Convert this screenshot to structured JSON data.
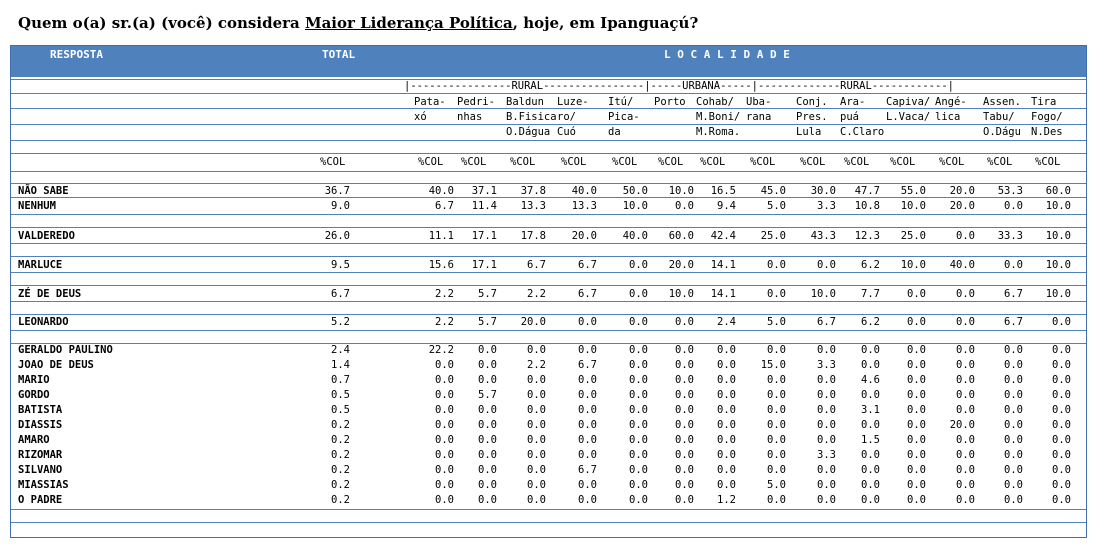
{
  "title": {
    "prefix": "Quem o(a) sr.(a) (você) considera ",
    "underlined": "Maior Liderança Política",
    "suffix": ", hoje, em Ipanguaçú?"
  },
  "header": {
    "resposta": "RESPOSTA",
    "total": "TOTAL",
    "localidade": "L O C A L I D A D E"
  },
  "groups_line": "|----------------RURAL----------------|-----URBANA-----|-------------RURAL------------|",
  "column_labels": [
    [
      "Pata-",
      "xó",
      ""
    ],
    [
      "Pedri-",
      "nhas",
      ""
    ],
    [
      "Baldun",
      "B.Fisica",
      "O.Dágua"
    ],
    [
      "Luze-",
      "ro/",
      "Cuó"
    ],
    [
      "Itú/",
      "Pica-",
      "da"
    ],
    [
      "Porto",
      "",
      ""
    ],
    [
      "Cohab/",
      "M.Boni/",
      "M.Roma."
    ],
    [
      "Uba-",
      "rana",
      ""
    ],
    [
      "Conj.",
      "Pres.",
      "Lula"
    ],
    [
      "Ara-",
      "puá",
      "C.Claro"
    ],
    [
      "Capiva/",
      "L.Vaca/",
      ""
    ],
    [
      "Angé-",
      "lica",
      ""
    ],
    [
      "Assen.",
      "Tabu/",
      "O.Dágu"
    ],
    [
      "Tira",
      "Fogo/",
      "N.Des"
    ]
  ],
  "col_unit": "%COL",
  "rows": [
    {
      "label": "NÃO SABE",
      "total": "36.7",
      "values": [
        "40.0",
        "37.1",
        "37.8",
        "40.0",
        "50.0",
        "10.0",
        "16.5",
        "45.0",
        "30.0",
        "47.7",
        "55.0",
        "20.0",
        "53.3",
        "60.0"
      ]
    },
    {
      "label": "NENHUM",
      "total": "9.0",
      "values": [
        "6.7",
        "11.4",
        "13.3",
        "13.3",
        "10.0",
        "0.0",
        "9.4",
        "5.0",
        "3.3",
        "10.8",
        "10.0",
        "20.0",
        "0.0",
        "10.0"
      ]
    },
    {
      "label": "VALDEREDO",
      "total": "26.0",
      "values": [
        "11.1",
        "17.1",
        "17.8",
        "20.0",
        "40.0",
        "60.0",
        "42.4",
        "25.0",
        "43.3",
        "12.3",
        "25.0",
        "0.0",
        "33.3",
        "10.0"
      ]
    },
    {
      "label": "MARLUCE",
      "total": "9.5",
      "values": [
        "15.6",
        "17.1",
        "6.7",
        "6.7",
        "0.0",
        "20.0",
        "14.1",
        "0.0",
        "0.0",
        "6.2",
        "10.0",
        "40.0",
        "0.0",
        "10.0"
      ]
    },
    {
      "label": "ZÉ DE DEUS",
      "total": "6.7",
      "values": [
        "2.2",
        "5.7",
        "2.2",
        "6.7",
        "0.0",
        "10.0",
        "14.1",
        "0.0",
        "10.0",
        "7.7",
        "0.0",
        "0.0",
        "6.7",
        "10.0"
      ]
    },
    {
      "label": "LEONARDO",
      "total": "5.2",
      "values": [
        "2.2",
        "5.7",
        "20.0",
        "0.0",
        "0.0",
        "0.0",
        "2.4",
        "5.0",
        "6.7",
        "6.2",
        "0.0",
        "0.0",
        "6.7",
        "0.0"
      ]
    },
    {
      "label": "GERALDO PAULINO",
      "total": "2.4",
      "values": [
        "22.2",
        "0.0",
        "0.0",
        "0.0",
        "0.0",
        "0.0",
        "0.0",
        "0.0",
        "0.0",
        "0.0",
        "0.0",
        "0.0",
        "0.0",
        "0.0"
      ]
    },
    {
      "label": "JOAO DE DEUS",
      "total": "1.4",
      "values": [
        "0.0",
        "0.0",
        "2.2",
        "6.7",
        "0.0",
        "0.0",
        "0.0",
        "15.0",
        "3.3",
        "0.0",
        "0.0",
        "0.0",
        "0.0",
        "0.0"
      ]
    },
    {
      "label": "MARIO",
      "total": "0.7",
      "values": [
        "0.0",
        "0.0",
        "0.0",
        "0.0",
        "0.0",
        "0.0",
        "0.0",
        "0.0",
        "0.0",
        "4.6",
        "0.0",
        "0.0",
        "0.0",
        "0.0"
      ]
    },
    {
      "label": "GORDO",
      "total": "0.5",
      "values": [
        "0.0",
        "5.7",
        "0.0",
        "0.0",
        "0.0",
        "0.0",
        "0.0",
        "0.0",
        "0.0",
        "0.0",
        "0.0",
        "0.0",
        "0.0",
        "0.0"
      ]
    },
    {
      "label": "BATISTA",
      "total": "0.5",
      "values": [
        "0.0",
        "0.0",
        "0.0",
        "0.0",
        "0.0",
        "0.0",
        "0.0",
        "0.0",
        "0.0",
        "3.1",
        "0.0",
        "0.0",
        "0.0",
        "0.0"
      ]
    },
    {
      "label": "DIASSIS",
      "total": "0.2",
      "values": [
        "0.0",
        "0.0",
        "0.0",
        "0.0",
        "0.0",
        "0.0",
        "0.0",
        "0.0",
        "0.0",
        "0.0",
        "0.0",
        "20.0",
        "0.0",
        "0.0"
      ]
    },
    {
      "label": "AMARO",
      "total": "0.2",
      "values": [
        "0.0",
        "0.0",
        "0.0",
        "0.0",
        "0.0",
        "0.0",
        "0.0",
        "0.0",
        "0.0",
        "1.5",
        "0.0",
        "0.0",
        "0.0",
        "0.0"
      ]
    },
    {
      "label": "RIZOMAR",
      "total": "0.2",
      "values": [
        "0.0",
        "0.0",
        "0.0",
        "0.0",
        "0.0",
        "0.0",
        "0.0",
        "0.0",
        "3.3",
        "0.0",
        "0.0",
        "0.0",
        "0.0",
        "0.0"
      ]
    },
    {
      "label": "SILVANO",
      "total": "0.2",
      "values": [
        "0.0",
        "0.0",
        "0.0",
        "6.7",
        "0.0",
        "0.0",
        "0.0",
        "0.0",
        "0.0",
        "0.0",
        "0.0",
        "0.0",
        "0.0",
        "0.0"
      ]
    },
    {
      "label": "MIASSIAS",
      "total": "0.2",
      "values": [
        "0.0",
        "0.0",
        "0.0",
        "0.0",
        "0.0",
        "0.0",
        "0.0",
        "5.0",
        "0.0",
        "0.0",
        "0.0",
        "0.0",
        "0.0",
        "0.0"
      ]
    },
    {
      "label": "O PADRE",
      "total": "0.2",
      "values": [
        "0.0",
        "0.0",
        "0.0",
        "0.0",
        "0.0",
        "0.0",
        "1.2",
        "0.0",
        "0.0",
        "0.0",
        "0.0",
        "0.0",
        "0.0",
        "0.0"
      ]
    }
  ]
}
